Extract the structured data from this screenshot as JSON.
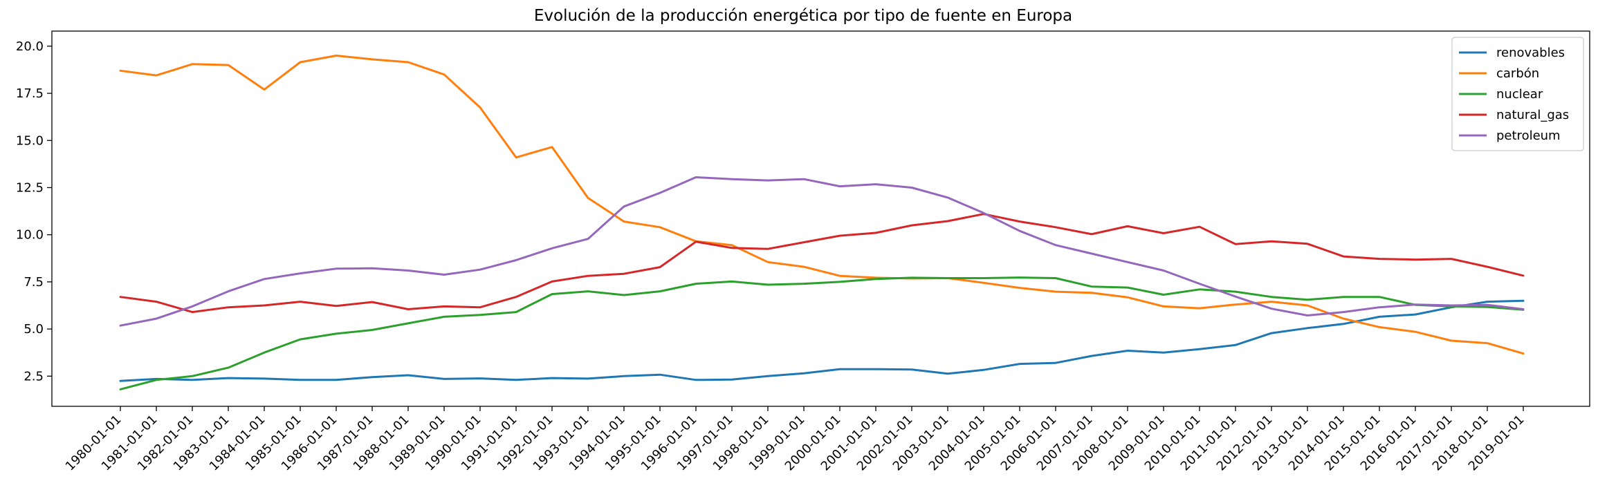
{
  "chart_data": {
    "type": "line",
    "title": "Evolución de la producción energética por tipo de fuente en Europa",
    "xlabel": "",
    "ylabel": "",
    "ylim": [
      0.9,
      20.8
    ],
    "yticks": [
      "2.5",
      "5.0",
      "7.5",
      "10.0",
      "12.5",
      "15.0",
      "17.5",
      "20.0"
    ],
    "grid": false,
    "legend_position": "top-right",
    "categories": [
      "1980-01-01",
      "1981-01-01",
      "1982-01-01",
      "1983-01-01",
      "1984-01-01",
      "1985-01-01",
      "1986-01-01",
      "1987-01-01",
      "1988-01-01",
      "1989-01-01",
      "1990-01-01",
      "1991-01-01",
      "1992-01-01",
      "1993-01-01",
      "1994-01-01",
      "1995-01-01",
      "1996-01-01",
      "1997-01-01",
      "1998-01-01",
      "1999-01-01",
      "2000-01-01",
      "2001-01-01",
      "2002-01-01",
      "2003-01-01",
      "2004-01-01",
      "2005-01-01",
      "2006-01-01",
      "2007-01-01",
      "2008-01-01",
      "2009-01-01",
      "2010-01-01",
      "2011-01-01",
      "2012-01-01",
      "2013-01-01",
      "2014-01-01",
      "2015-01-01",
      "2016-01-01",
      "2017-01-01",
      "2018-01-01",
      "2019-01-01"
    ],
    "series": [
      {
        "name": "renovables",
        "color": "#1f77b4",
        "values": [
          2.25,
          2.35,
          2.3,
          2.4,
          2.37,
          2.3,
          2.3,
          2.45,
          2.55,
          2.35,
          2.38,
          2.3,
          2.4,
          2.37,
          2.5,
          2.58,
          2.3,
          2.32,
          2.5,
          2.65,
          2.87,
          2.87,
          2.85,
          2.63,
          2.83,
          3.15,
          3.2,
          3.57,
          3.85,
          3.75,
          3.93,
          4.15,
          4.78,
          5.05,
          5.27,
          5.65,
          5.77,
          6.15,
          6.45,
          6.5
        ]
      },
      {
        "name": "carbón",
        "color": "#ff7f0e",
        "values": [
          18.7,
          18.45,
          19.05,
          19.0,
          17.7,
          19.15,
          19.5,
          19.3,
          19.15,
          18.5,
          16.75,
          14.1,
          14.65,
          11.95,
          10.7,
          10.4,
          9.65,
          9.45,
          8.55,
          8.3,
          7.82,
          7.72,
          7.68,
          7.7,
          7.45,
          7.18,
          6.98,
          6.92,
          6.68,
          6.2,
          6.1,
          6.3,
          6.45,
          6.25,
          5.55,
          5.1,
          4.85,
          4.38,
          4.25,
          3.7
        ]
      },
      {
        "name": "nuclear",
        "color": "#2ca02c",
        "values": [
          1.8,
          2.3,
          2.5,
          2.95,
          3.75,
          4.45,
          4.75,
          4.95,
          5.3,
          5.65,
          5.75,
          5.9,
          6.85,
          7.0,
          6.8,
          7.0,
          7.4,
          7.52,
          7.35,
          7.4,
          7.5,
          7.65,
          7.72,
          7.7,
          7.7,
          7.73,
          7.7,
          7.25,
          7.2,
          6.82,
          7.1,
          6.98,
          6.7,
          6.55,
          6.7,
          6.7,
          6.28,
          6.2,
          6.17,
          6.02
        ]
      },
      {
        "name": "natural_gas",
        "color": "#d62728",
        "values": [
          6.7,
          6.45,
          5.9,
          6.15,
          6.25,
          6.45,
          6.22,
          6.43,
          6.05,
          6.2,
          6.15,
          6.7,
          7.52,
          7.82,
          7.93,
          8.28,
          9.63,
          9.3,
          9.25,
          9.6,
          9.95,
          10.1,
          10.5,
          10.72,
          11.1,
          10.7,
          10.4,
          10.03,
          10.45,
          10.08,
          10.42,
          9.5,
          9.65,
          9.52,
          8.85,
          8.72,
          8.68,
          8.72,
          8.3,
          7.83
        ]
      },
      {
        "name": "petroleum",
        "color": "#9467bd",
        "values": [
          5.18,
          5.55,
          6.2,
          7.0,
          7.65,
          7.95,
          8.2,
          8.22,
          8.1,
          7.88,
          8.15,
          8.65,
          9.28,
          9.78,
          11.5,
          12.22,
          13.05,
          12.95,
          12.88,
          12.95,
          12.57,
          12.68,
          12.5,
          11.97,
          11.15,
          10.2,
          9.45,
          9.0,
          8.55,
          8.1,
          7.4,
          6.72,
          6.08,
          5.72,
          5.9,
          6.15,
          6.3,
          6.25,
          6.28,
          6.05
        ]
      }
    ]
  }
}
